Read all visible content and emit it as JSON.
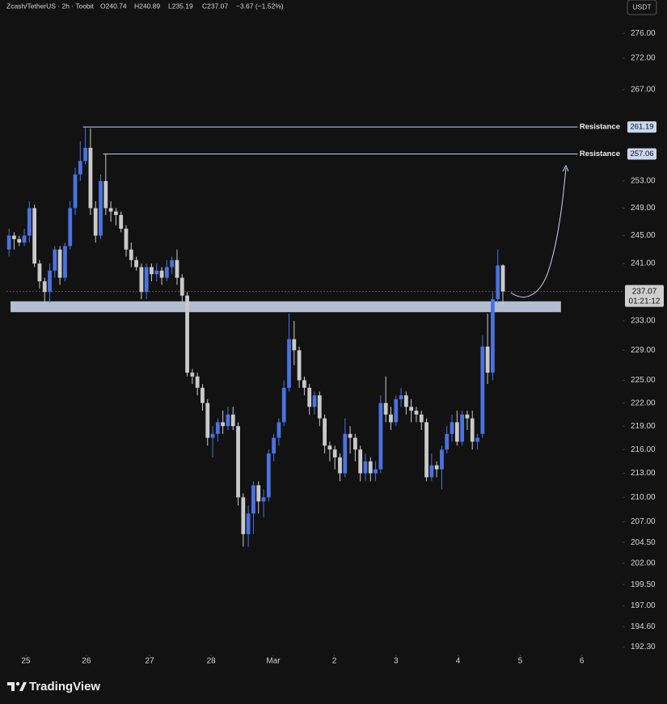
{
  "header": {
    "title": "Zcash/TetherUS · 2h · Toobit",
    "ohlc": [
      "O240.74",
      "H240.89",
      "L235.19",
      "C237.07"
    ],
    "change": "−3.67 (−1.52%)"
  },
  "currency": "USDT",
  "footer": {
    "brand": "TradingView"
  },
  "chart_data": {
    "type": "candlestick",
    "log_scale": true,
    "up_color": "#4a72e0",
    "down_color": "#c9c9c9",
    "ylim": [
      191.6,
      278.8
    ],
    "yticks": [
      {
        "value": 276,
        "label": "276.00"
      },
      {
        "value": 272,
        "label": "272.00"
      },
      {
        "value": 267,
        "label": "267.00"
      },
      {
        "value": 253,
        "label": "253.00"
      },
      {
        "value": 249,
        "label": "249.00"
      },
      {
        "value": 245,
        "label": "245.00"
      },
      {
        "value": 241,
        "label": "241.00"
      },
      {
        "value": 233,
        "label": "233.00"
      },
      {
        "value": 229,
        "label": "229.00"
      },
      {
        "value": 225,
        "label": "225.00"
      },
      {
        "value": 222,
        "label": "222.00"
      },
      {
        "value": 219,
        "label": "219.00"
      },
      {
        "value": 216,
        "label": "216.00"
      },
      {
        "value": 213,
        "label": "213.00"
      },
      {
        "value": 210,
        "label": "210.00"
      },
      {
        "value": 207,
        "label": "207.00"
      },
      {
        "value": 204.5,
        "label": "204.50"
      },
      {
        "value": 202,
        "label": "202.00"
      },
      {
        "value": 199.5,
        "label": "199.50"
      },
      {
        "value": 197,
        "label": "197.00"
      },
      {
        "value": 194.6,
        "label": "194.60"
      },
      {
        "value": 192.3,
        "label": "192.30"
      }
    ],
    "xlim": [
      0,
      121
    ],
    "xticks": [
      {
        "value": 3.8,
        "label": "25"
      },
      {
        "value": 15.7,
        "label": "26"
      },
      {
        "value": 28.1,
        "label": "27"
      },
      {
        "value": 40.2,
        "label": "28"
      },
      {
        "value": 52.4,
        "label": "Mar"
      },
      {
        "value": 64.4,
        "label": "2"
      },
      {
        "value": 76.5,
        "label": "3"
      },
      {
        "value": 88.7,
        "label": "4"
      },
      {
        "value": 100.9,
        "label": "5"
      },
      {
        "value": 113,
        "label": "6"
      }
    ],
    "open": [
      243,
      245,
      244.5,
      244,
      245,
      249,
      241,
      238.5,
      237,
      240,
      243,
      239,
      243.5,
      249,
      254,
      256,
      258,
      249,
      245,
      253,
      249,
      248.5,
      248,
      246,
      243,
      241.5,
      240.5,
      237,
      240.5,
      239.5,
      240,
      239,
      240.5,
      241.5,
      239,
      236.5,
      226,
      225.5,
      224,
      222,
      217.5,
      218,
      219.5,
      219,
      220.5,
      219,
      210,
      205.5,
      208,
      211.5,
      209.5,
      210,
      215.5,
      217.5,
      219.5,
      224,
      230.5,
      229,
      225,
      224,
      221.5,
      223,
      220,
      216.5,
      216,
      215,
      213,
      218,
      217.5,
      216,
      213,
      214.5,
      213,
      213.5,
      222,
      220.5,
      219.5,
      222.5,
      223,
      221.5,
      221,
      220.5,
      219.5,
      212.5,
      214,
      213.5,
      216,
      218,
      219.5,
      217,
      220.5,
      220,
      217,
      218,
      229.5,
      226,
      236,
      240.74
    ],
    "high": [
      246,
      245.5,
      245,
      246,
      250,
      249.5,
      241.5,
      239,
      241,
      243.5,
      243.5,
      244,
      250,
      255,
      259,
      261.19,
      261,
      250,
      254,
      257.06,
      250,
      249,
      248.5,
      246.5,
      244,
      242,
      241,
      241,
      241,
      241,
      240.5,
      241.5,
      242,
      243,
      239.5,
      237,
      226.5,
      226,
      224.5,
      222.5,
      219,
      220,
      221,
      221.5,
      221.5,
      219.5,
      210.5,
      209,
      212,
      212,
      211,
      216,
      218,
      220,
      225,
      234,
      233,
      229.5,
      225.5,
      224.5,
      223.5,
      223.5,
      220.5,
      217,
      216.5,
      215.5,
      220,
      219,
      218,
      216.5,
      215.5,
      215,
      214.5,
      223,
      225.5,
      221.5,
      223,
      224,
      223.5,
      222.5,
      221.5,
      221,
      220,
      215.5,
      214.5,
      216.5,
      219,
      220.5,
      221,
      221,
      221,
      221,
      218,
      231,
      234,
      237,
      243,
      240.89
    ],
    "low": [
      242,
      243,
      243.5,
      243.5,
      244,
      240.5,
      237.5,
      235.5,
      235.5,
      239,
      238,
      238.5,
      243,
      248,
      253,
      255.5,
      248,
      244,
      244.5,
      248,
      247,
      246.5,
      245.5,
      242,
      240.5,
      240,
      236,
      236,
      238.5,
      238.5,
      238,
      238.5,
      239.5,
      238,
      235.5,
      225.5,
      224.5,
      223,
      221,
      216.5,
      215,
      217,
      218,
      218.5,
      218.5,
      209,
      204,
      204,
      205.5,
      208,
      207.5,
      209.5,
      214.5,
      216.5,
      219,
      223.5,
      227,
      224,
      223,
      220.5,
      220.5,
      219,
      215.5,
      214.5,
      213.5,
      212,
      212.5,
      215.5,
      214.5,
      212,
      212,
      212,
      212,
      213,
      219.5,
      218.5,
      219,
      221.5,
      220.5,
      219.5,
      219.5,
      218.5,
      212,
      212,
      212.5,
      211,
      215.5,
      217,
      216.5,
      216.5,
      218.5,
      216,
      216,
      217.5,
      224.5,
      225,
      235.5,
      235.19
    ],
    "close": [
      245,
      244.5,
      244,
      245,
      249,
      241,
      238.5,
      237,
      240,
      243,
      239,
      243.5,
      249,
      254,
      256,
      258,
      249,
      245,
      253,
      249,
      248.5,
      248,
      246,
      243,
      241.5,
      240.5,
      237,
      240.5,
      239.5,
      240,
      239,
      240.5,
      241.5,
      239,
      236.5,
      226,
      225.5,
      224,
      222,
      217.5,
      218,
      219.5,
      219,
      220.5,
      219,
      210,
      205.5,
      208,
      211.5,
      209.5,
      210,
      215.5,
      217.5,
      219.5,
      224,
      230.5,
      229,
      225,
      224,
      221.5,
      223,
      220,
      216.5,
      216,
      215,
      213,
      218,
      217.5,
      216,
      213,
      214.5,
      213,
      213.5,
      222,
      220.5,
      219.5,
      222.5,
      223,
      221.5,
      221,
      220.5,
      219.5,
      212.5,
      214,
      213.5,
      216,
      218,
      219.5,
      217,
      220.5,
      220,
      217,
      217.5,
      229.5,
      226,
      236,
      240.74,
      237.07
    ],
    "last_price": 237.07,
    "countdown": "01:21:12",
    "resistances": [
      {
        "label": "Resistance",
        "value": 261.19,
        "value_label": "261.19",
        "x": [
          15,
          112.2
        ]
      },
      {
        "label": "Resistance",
        "value": 257.06,
        "value_label": "257.06",
        "x": [
          19,
          112.2
        ]
      }
    ],
    "support_zone": {
      "low": 234.2,
      "high": 235.7,
      "x": [
        0.8,
        108.9
      ]
    }
  }
}
